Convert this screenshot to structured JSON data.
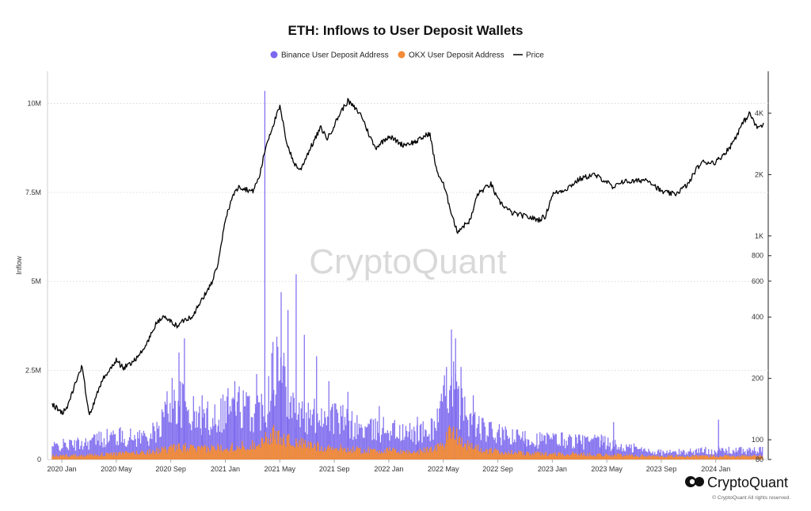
{
  "chart_data": {
    "type": "bar",
    "title": "ETH: Inflows to User Deposit Wallets",
    "ylabel": "Inflow",
    "ylim": [
      0,
      10500000
    ],
    "y_ticks": [
      {
        "value": 0,
        "label": "0"
      },
      {
        "value": 2500000,
        "label": "2.5M"
      },
      {
        "value": 5000000,
        "label": "5M"
      },
      {
        "value": 7500000,
        "label": "7.5M"
      },
      {
        "value": 10000000,
        "label": "10M"
      }
    ],
    "y2_scale": "log",
    "y2lim": [
      80,
      5000
    ],
    "y2_ticks": [
      {
        "value": 80,
        "label": "80"
      },
      {
        "value": 100,
        "label": "100"
      },
      {
        "value": 200,
        "label": "200"
      },
      {
        "value": 400,
        "label": "400"
      },
      {
        "value": 600,
        "label": "600"
      },
      {
        "value": 800,
        "label": "800"
      },
      {
        "value": 1000,
        "label": "1K"
      },
      {
        "value": 2000,
        "label": "2K"
      },
      {
        "value": 4000,
        "label": "4K"
      }
    ],
    "x_ticks": [
      "2020 Jan",
      "2020 May",
      "2020 Sep",
      "2021 Jan",
      "2021 May",
      "2021 Sep",
      "2022 Jan",
      "2022 May",
      "2022 Sep",
      "2023 Jan",
      "2023 May",
      "2023 Sep",
      "2024 Jan"
    ],
    "x_tick_months": [
      0,
      4,
      8,
      12,
      16,
      20,
      24,
      28,
      32,
      36,
      40,
      44,
      48
    ],
    "x_range_months": [
      -0.7,
      51.5
    ],
    "series": [
      {
        "name": "Binance User Deposit Address",
        "color": "#7b68ee",
        "type": "bar",
        "profile": [
          [
            -0.7,
            350000
          ],
          [
            0,
            400000
          ],
          [
            1,
            420000
          ],
          [
            2,
            500000
          ],
          [
            3,
            600000
          ],
          [
            4,
            650000
          ],
          [
            5,
            600000
          ],
          [
            6,
            650000
          ],
          [
            7,
            750000
          ],
          [
            8,
            1700000
          ],
          [
            9,
            1500000
          ],
          [
            10,
            1100000
          ],
          [
            11,
            1200000
          ],
          [
            12,
            1400000
          ],
          [
            13,
            1500000
          ],
          [
            14,
            1300000
          ],
          [
            15,
            1500000
          ],
          [
            15.5,
            2800000
          ],
          [
            16,
            2500000
          ],
          [
            16.5,
            2200000
          ],
          [
            17,
            1500000
          ],
          [
            18,
            1100000
          ],
          [
            19,
            1300000
          ],
          [
            20,
            1200000
          ],
          [
            21,
            1000000
          ],
          [
            22,
            850000
          ],
          [
            23,
            800000
          ],
          [
            24,
            900000
          ],
          [
            25,
            700000
          ],
          [
            26,
            750000
          ],
          [
            27,
            750000
          ],
          [
            28,
            1500000
          ],
          [
            28.6,
            2600000
          ],
          [
            29,
            1600000
          ],
          [
            30,
            1100000
          ],
          [
            31,
            800000
          ],
          [
            32,
            700000
          ],
          [
            33,
            600000
          ],
          [
            34,
            600000
          ],
          [
            35,
            550000
          ],
          [
            36,
            550000
          ],
          [
            37,
            550000
          ],
          [
            38,
            500000
          ],
          [
            39,
            500000
          ],
          [
            40,
            450000
          ],
          [
            41,
            350000
          ],
          [
            42,
            300000
          ],
          [
            43,
            250000
          ],
          [
            44,
            200000
          ],
          [
            45,
            200000
          ],
          [
            46,
            220000
          ],
          [
            47,
            250000
          ],
          [
            48,
            250000
          ],
          [
            49,
            250000
          ],
          [
            50,
            250000
          ],
          [
            51.5,
            250000
          ]
        ],
        "spikes": [
          [
            8.6,
            3000000
          ],
          [
            9.0,
            3400000
          ],
          [
            10.3,
            1800000
          ],
          [
            12.2,
            2000000
          ],
          [
            12.7,
            2200000
          ],
          [
            14.3,
            2400000
          ],
          [
            14.9,
            10350000
          ],
          [
            15.5,
            3300000
          ],
          [
            16.1,
            4700000
          ],
          [
            16.6,
            4200000
          ],
          [
            17.2,
            5200000
          ],
          [
            17.8,
            3500000
          ],
          [
            18.7,
            2900000
          ],
          [
            19.6,
            2200000
          ],
          [
            21.0,
            1900000
          ],
          [
            23.3,
            1500000
          ],
          [
            26.1,
            1200000
          ],
          [
            28.6,
            3650000
          ],
          [
            28.9,
            3400000
          ],
          [
            29.3,
            2600000
          ],
          [
            30.2,
            1800000
          ],
          [
            34.0,
            800000
          ],
          [
            38.0,
            700000
          ],
          [
            39.6,
            700000
          ],
          [
            40.5,
            1050000
          ],
          [
            42.0,
            450000
          ],
          [
            48.2,
            1120000
          ]
        ]
      },
      {
        "name": "OKX User Deposit Address",
        "color": "#f28c38",
        "type": "bar",
        "profile": [
          [
            -0.7,
            100000
          ],
          [
            0,
            110000
          ],
          [
            2,
            130000
          ],
          [
            4,
            160000
          ],
          [
            6,
            200000
          ],
          [
            8,
            300000
          ],
          [
            9,
            350000
          ],
          [
            10,
            280000
          ],
          [
            12,
            350000
          ],
          [
            14,
            400000
          ],
          [
            15.5,
            700000
          ],
          [
            16.5,
            550000
          ],
          [
            18,
            400000
          ],
          [
            20,
            320000
          ],
          [
            22,
            260000
          ],
          [
            24,
            250000
          ],
          [
            26,
            200000
          ],
          [
            28,
            400000
          ],
          [
            28.6,
            900000
          ],
          [
            29.5,
            450000
          ],
          [
            31,
            250000
          ],
          [
            34,
            170000
          ],
          [
            38,
            150000
          ],
          [
            42,
            110000
          ],
          [
            46,
            90000
          ],
          [
            48,
            100000
          ],
          [
            51.5,
            100000
          ]
        ]
      },
      {
        "name": "Price",
        "color": "#000000",
        "type": "line",
        "axis": "right",
        "x_months": [
          -0.7,
          0,
          0.5,
          1,
          1.5,
          2,
          2.5,
          3,
          3.5,
          4,
          4.5,
          5,
          6,
          7,
          7.5,
          8,
          8.5,
          9,
          9.5,
          10,
          11,
          11.5,
          12,
          12.5,
          13,
          14,
          14.5,
          15,
          15.5,
          16,
          16.5,
          17,
          17.5,
          18,
          19,
          19.5,
          20,
          20.5,
          21,
          22,
          22.5,
          23,
          24,
          25,
          26,
          27,
          27.5,
          28,
          29,
          30,
          30.5,
          31,
          31.5,
          32,
          33,
          34,
          35,
          35.5,
          36,
          36.5,
          37,
          38,
          39,
          40,
          40.5,
          41,
          42,
          43,
          44,
          45,
          46,
          46.5,
          47,
          48,
          49,
          49.5,
          50,
          50.5,
          51,
          51.5
        ],
        "values": [
          150,
          135,
          150,
          190,
          230,
          130,
          160,
          200,
          220,
          245,
          225,
          235,
          275,
          380,
          400,
          380,
          360,
          390,
          400,
          450,
          590,
          740,
          1200,
          1550,
          1750,
          1650,
          1950,
          2800,
          3500,
          4300,
          2900,
          2300,
          2100,
          2500,
          3400,
          3000,
          3500,
          4100,
          4600,
          3900,
          3200,
          2700,
          3100,
          2800,
          2900,
          3200,
          2100,
          1800,
          1050,
          1200,
          1600,
          1700,
          1800,
          1500,
          1300,
          1250,
          1200,
          1250,
          1600,
          1650,
          1700,
          1900,
          2000,
          1850,
          1700,
          1850,
          1850,
          1900,
          1650,
          1600,
          1800,
          2100,
          2300,
          2300,
          2700,
          3100,
          3600,
          4000,
          3400,
          3500
        ]
      }
    ]
  },
  "legend": [
    {
      "label": "Binance User Deposit Address",
      "color": "#7b68ee"
    },
    {
      "label": "OKX User Deposit Address",
      "color": "#f28c38"
    },
    {
      "label": "Price",
      "color": "#000000"
    }
  ],
  "watermark": "CryptoQuant",
  "branding": {
    "name": "CryptoQuant",
    "copyright": "© CryptoQuant All rights reserved."
  }
}
